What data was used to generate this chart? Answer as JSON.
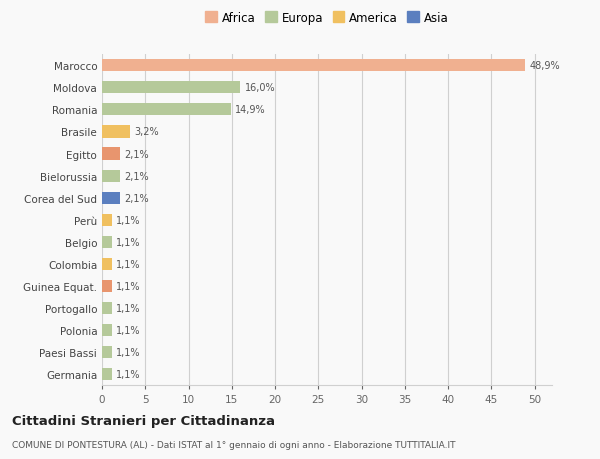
{
  "categories": [
    "Germania",
    "Paesi Bassi",
    "Polonia",
    "Portogallo",
    "Guinea Equat.",
    "Colombia",
    "Belgio",
    "Perù",
    "Corea del Sud",
    "Bielorussia",
    "Egitto",
    "Brasile",
    "Romania",
    "Moldova",
    "Marocco"
  ],
  "values": [
    1.1,
    1.1,
    1.1,
    1.1,
    1.1,
    1.1,
    1.1,
    1.1,
    2.1,
    2.1,
    2.1,
    3.2,
    14.9,
    16.0,
    48.9
  ],
  "labels": [
    "1,1%",
    "1,1%",
    "1,1%",
    "1,1%",
    "1,1%",
    "1,1%",
    "1,1%",
    "1,1%",
    "2,1%",
    "2,1%",
    "2,1%",
    "3,2%",
    "14,9%",
    "16,0%",
    "48,9%"
  ],
  "colors": [
    "#b5c99a",
    "#b5c99a",
    "#b5c99a",
    "#b5c99a",
    "#e8956e",
    "#f0c060",
    "#b5c99a",
    "#f0c060",
    "#5b7fbf",
    "#b5c99a",
    "#e8956e",
    "#f0c060",
    "#b5c99a",
    "#b5c99a",
    "#f0b090"
  ],
  "legend_labels": [
    "Africa",
    "Europa",
    "America",
    "Asia"
  ],
  "legend_colors": [
    "#f0b090",
    "#b5c99a",
    "#f0c060",
    "#5b7fbf"
  ],
  "title": "Cittadini Stranieri per Cittadinanza",
  "subtitle": "COMUNE DI PONTESTURA (AL) - Dati ISTAT al 1° gennaio di ogni anno - Elaborazione TUTTITALIA.IT",
  "xlim": [
    0,
    52
  ],
  "background_color": "#f9f9f9",
  "grid_color": "#d0d0d0",
  "bar_height": 0.55
}
